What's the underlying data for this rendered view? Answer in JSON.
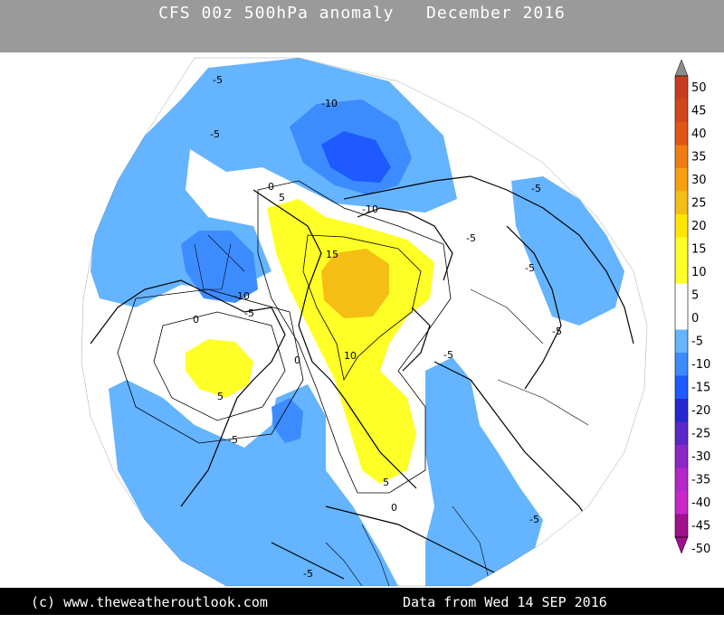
{
  "header": {
    "title": "CFS 00z 500hPa anomaly   December 2016"
  },
  "footer": {
    "credit": "(c) www.theweatheroutlook.com",
    "data_date": "Data from Wed 14 SEP 2016"
  },
  "colorbar": {
    "ticks": [
      "50",
      "45",
      "40",
      "35",
      "30",
      "25",
      "20",
      "15",
      "10",
      "5",
      "0",
      "-5",
      "-10",
      "-15",
      "-20",
      "-25",
      "-30",
      "-35",
      "-40",
      "-45",
      "-50"
    ],
    "colors": [
      "#c83c1e",
      "#e05514",
      "#f07d14",
      "#f5a00f",
      "#f5be14",
      "#ffe600",
      "#ffff28",
      "#ffffff",
      "#64b4ff",
      "#3c8cff",
      "#1e5aff",
      "#2828d2",
      "#5a28c8",
      "#8c28c8",
      "#c828c8",
      "#ff00ff",
      "#a0108c"
    ]
  },
  "map_labels": {
    "lbl_a": "-5",
    "lbl_b": "-10",
    "lbl_c": "-5",
    "lbl_d": "-5",
    "lbl_e": "5",
    "lbl_f": "0",
    "lbl_g": "-10",
    "lbl_h": "15",
    "lbl_i": "-5",
    "lbl_j": "-10",
    "lbl_k": "-5",
    "lbl_l": "0",
    "lbl_m": "10",
    "lbl_n": "-5",
    "lbl_o": "5",
    "lbl_p": "-5",
    "lbl_q": "-5",
    "lbl_r": "5",
    "lbl_s": "0",
    "lbl_t": "-5",
    "lbl_u": "-5",
    "lbl_v": "-5",
    "lbl_w": "0"
  }
}
